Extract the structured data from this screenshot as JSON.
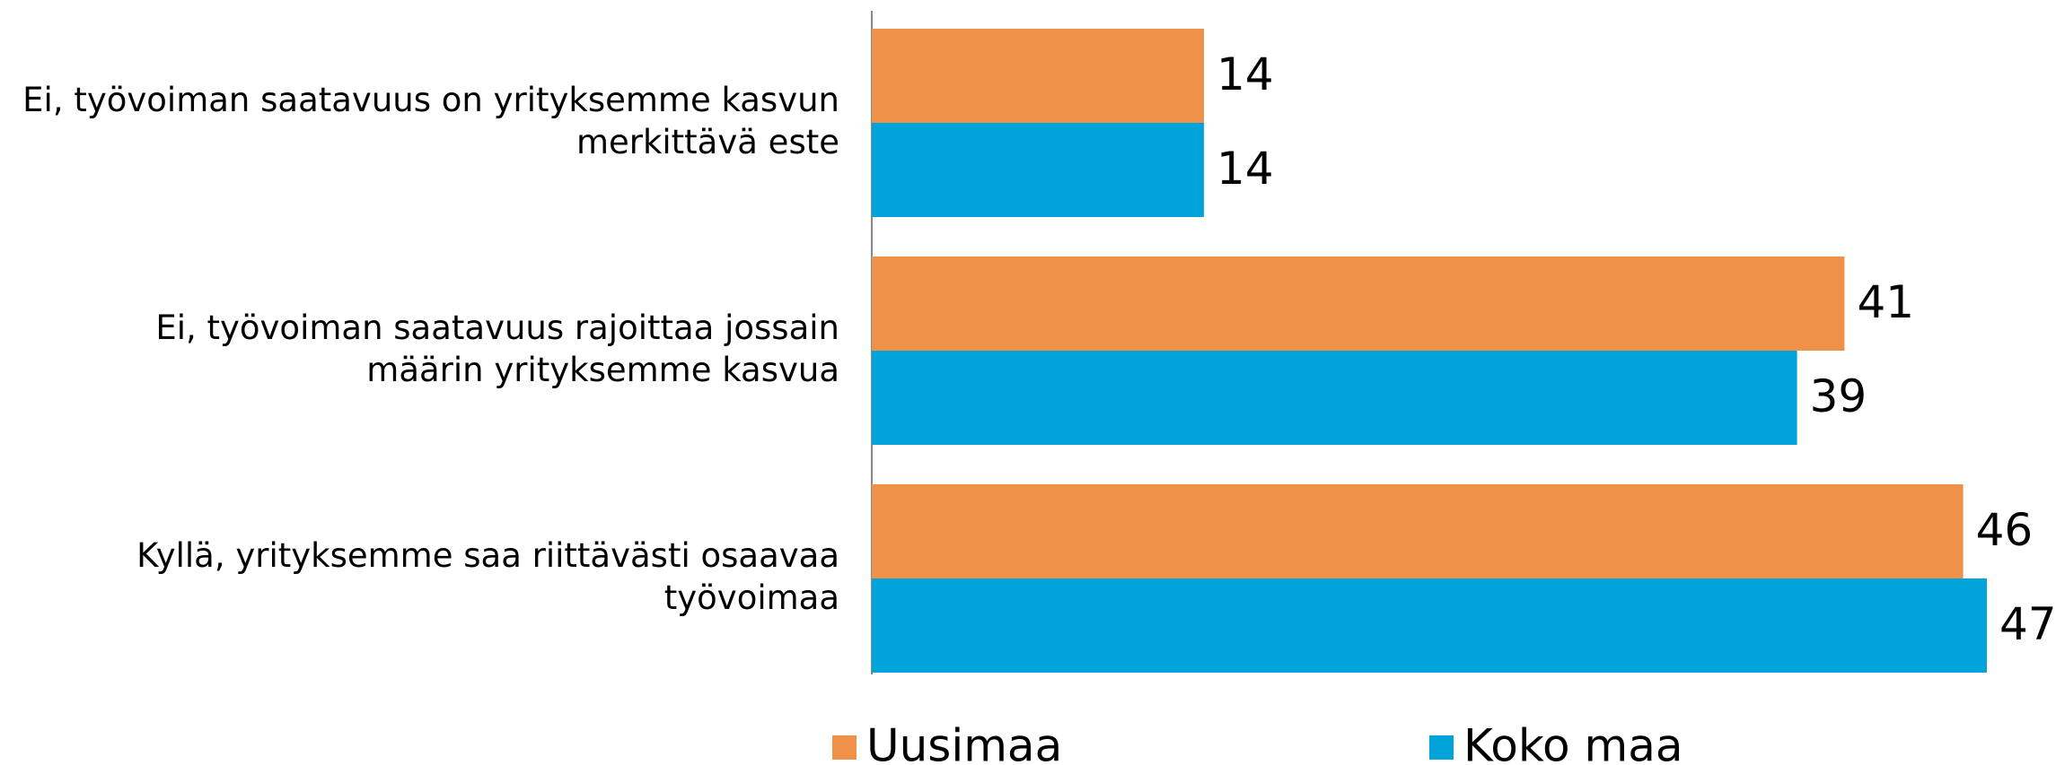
{
  "chart_data": {
    "type": "hbar",
    "categories": [
      [
        "Ei, työvoiman saatavuus on yrityksemme kasvun",
        "merkittävä este"
      ],
      [
        "Ei, työvoiman saatavuus rajoittaa jossain",
        "määrin yrityksemme kasvua"
      ],
      [
        "Kyllä, yrityksemme saa riittävästi osaavaa",
        "työvoimaa"
      ]
    ],
    "series": [
      {
        "name": "Uusimaa",
        "color": "#f0914a",
        "values": [
          14,
          41,
          46
        ]
      },
      {
        "name": "Koko maa",
        "color": "#00a4db",
        "values": [
          14,
          39,
          47
        ]
      }
    ],
    "legend": "bottom"
  }
}
